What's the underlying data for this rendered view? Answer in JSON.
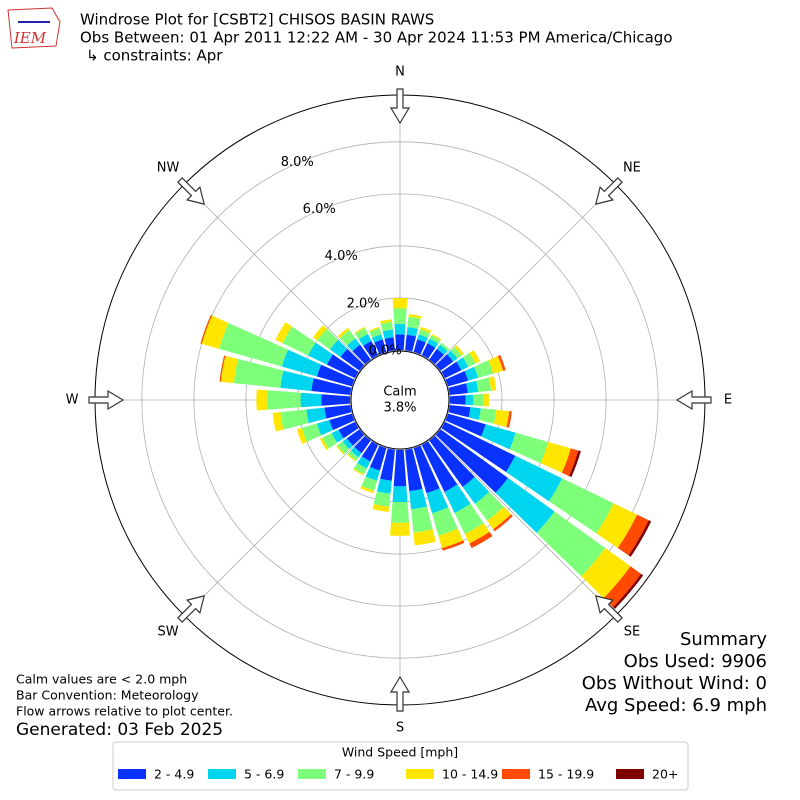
{
  "chart_data": {
    "type": "windrose",
    "title": "Windrose Plot for [CSBT2] CHISOS BASIN RAWS",
    "subtitle": "Obs Between: 01 Apr 2011 12:22 AM - 30 Apr 2024 11:53 PM America/Chicago",
    "constraints": "↳ constraints: Apr",
    "logo_text": "IEM",
    "x": [
      0,
      10,
      20,
      30,
      40,
      50,
      60,
      70,
      80,
      90,
      100,
      110,
      120,
      130,
      140,
      150,
      160,
      170,
      180,
      190,
      200,
      210,
      220,
      230,
      240,
      250,
      260,
      270,
      280,
      290,
      300,
      310,
      320,
      330,
      340,
      350
    ],
    "series": [
      {
        "name": "2 - 4.9",
        "color": "#0a32ff",
        "values": [
          0.6,
          0.6,
          0.5,
          0.5,
          0.5,
          0.6,
          0.7,
          0.8,
          0.7,
          0.6,
          0.8,
          1.5,
          3.0,
          3.2,
          2.2,
          2.0,
          1.8,
          1.6,
          1.4,
          1.2,
          0.9,
          0.7,
          0.6,
          0.6,
          0.7,
          0.9,
          1.0,
          1.1,
          1.5,
          1.4,
          1.2,
          0.9,
          0.7,
          0.6,
          0.5,
          0.5
        ]
      },
      {
        "name": "5 - 6.9",
        "color": "#00d5f0",
        "values": [
          0.4,
          0.3,
          0.2,
          0.2,
          0.2,
          0.2,
          0.3,
          0.4,
          0.4,
          0.3,
          0.4,
          1.2,
          2.0,
          2.2,
          0.8,
          0.9,
          0.8,
          0.7,
          0.6,
          0.5,
          0.4,
          0.3,
          0.2,
          0.2,
          0.3,
          0.5,
          0.7,
          0.8,
          1.2,
          1.4,
          0.8,
          0.5,
          0.3,
          0.3,
          0.2,
          0.3
        ]
      },
      {
        "name": "7 - 9.9",
        "color": "#7dff7a",
        "values": [
          0.6,
          0.4,
          0.2,
          0.15,
          0.1,
          0.2,
          0.3,
          0.6,
          0.5,
          0.4,
          0.6,
          1.3,
          2.2,
          2.4,
          0.8,
          0.9,
          0.9,
          0.9,
          0.8,
          0.5,
          0.4,
          0.25,
          0.15,
          0.25,
          0.4,
          0.6,
          1.0,
          1.3,
          1.8,
          2.5,
          1.1,
          0.6,
          0.4,
          0.25,
          0.25,
          0.3
        ]
      },
      {
        "name": "10 - 14.9",
        "color": "#ffe600",
        "values": [
          0.4,
          0.1,
          0.1,
          0.05,
          0,
          0.1,
          0.2,
          0.4,
          0.2,
          0.2,
          0.5,
          0.9,
          1.0,
          1.2,
          0.4,
          0.4,
          0.5,
          0.5,
          0.5,
          0.2,
          0.1,
          0.05,
          0.05,
          0.05,
          0.1,
          0.2,
          0.3,
          0.4,
          0.5,
          0.7,
          0.3,
          0.2,
          0.1,
          0.05,
          0.05,
          0.1
        ]
      },
      {
        "name": "15 - 19.9",
        "color": "#ff4a00",
        "values": [
          0,
          0,
          0,
          0,
          0,
          0,
          0,
          0.1,
          0,
          0,
          0.1,
          0.3,
          0.5,
          0.5,
          0.1,
          0.2,
          0.1,
          0,
          0,
          0,
          0,
          0,
          0,
          0,
          0,
          0,
          0,
          0,
          0.05,
          0.05,
          0,
          0,
          0,
          0,
          0,
          0
        ]
      },
      {
        "name": "20+",
        "color": "#800000",
        "values": [
          0,
          0,
          0,
          0,
          0,
          0,
          0,
          0,
          0,
          0,
          0,
          0.1,
          0.1,
          0.1,
          0,
          0,
          0,
          0,
          0,
          0,
          0,
          0,
          0,
          0,
          0,
          0,
          0,
          0,
          0,
          0,
          0,
          0,
          0,
          0,
          0,
          0
        ]
      }
    ],
    "ylim": [
      0,
      9.8
    ],
    "yticks": [
      {
        "value": 0,
        "label": "0.0%"
      },
      {
        "value": 2,
        "label": "2.0%"
      },
      {
        "value": 4,
        "label": "4.0%"
      },
      {
        "value": 6,
        "label": "6.0%"
      },
      {
        "value": 8,
        "label": "8.0%"
      }
    ],
    "grid": true,
    "direction_labels": [
      "N",
      "NE",
      "E",
      "SE",
      "S",
      "SW",
      "W",
      "NW"
    ],
    "calm": {
      "label": "Calm",
      "value": 3.8,
      "value_label": "3.8%"
    },
    "legend_title": "Wind Speed [mph]",
    "notes": [
      "Calm values are < 2.0 mph",
      "Bar Convention: Meteorology",
      "Flow arrows relative to plot center."
    ],
    "generated": "Generated: 03 Feb 2025",
    "summary": [
      "Summary",
      "Obs Used: 9906",
      "Obs Without Wind: 0",
      "Avg Speed: 6.9 mph"
    ]
  }
}
